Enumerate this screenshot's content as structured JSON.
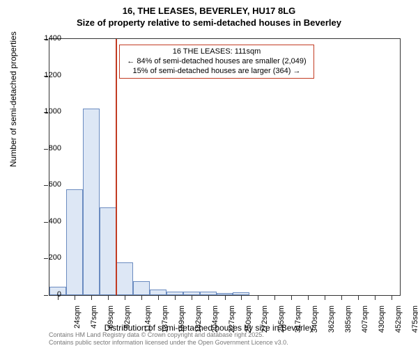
{
  "title_line1": "16, THE LEASES, BEVERLEY, HU17 8LG",
  "title_line2": "Size of property relative to semi-detached houses in Beverley",
  "ylabel": "Number of semi-detached properties",
  "xlabel": "Distribution of semi-detached houses by size in Beverley",
  "chart": {
    "type": "histogram",
    "bar_fill": "#dde7f5",
    "bar_stroke": "#6a8bc0",
    "background": "#ffffff",
    "axis_color": "#333333",
    "ylim": [
      0,
      1400
    ],
    "yticks": [
      0,
      200,
      400,
      600,
      800,
      1000,
      1200,
      1400
    ],
    "xticks": [
      "24sqm",
      "47sqm",
      "69sqm",
      "92sqm",
      "114sqm",
      "137sqm",
      "159sqm",
      "182sqm",
      "204sqm",
      "227sqm",
      "250sqm",
      "272sqm",
      "295sqm",
      "317sqm",
      "340sqm",
      "362sqm",
      "385sqm",
      "407sqm",
      "430sqm",
      "452sqm",
      "475sqm"
    ],
    "values": [
      45,
      580,
      1020,
      480,
      180,
      75,
      30,
      20,
      18,
      20,
      12,
      15,
      0,
      0,
      0,
      0,
      0,
      0,
      0,
      0,
      0
    ],
    "marker_line": {
      "x_index": 3.95,
      "color": "#c23b22"
    }
  },
  "annotation": {
    "line1": "16 THE LEASES: 111sqm",
    "line2": "← 84% of semi-detached houses are smaller (2,049)",
    "line3": "15% of semi-detached houses are larger (364) →",
    "border_color": "#c23b22",
    "fontsize": 11
  },
  "footer": {
    "line1": "Contains HM Land Registry data © Crown copyright and database right 2025.",
    "line2": "Contains public sector information licensed under the Open Government Licence v3.0.",
    "color": "#777777"
  }
}
